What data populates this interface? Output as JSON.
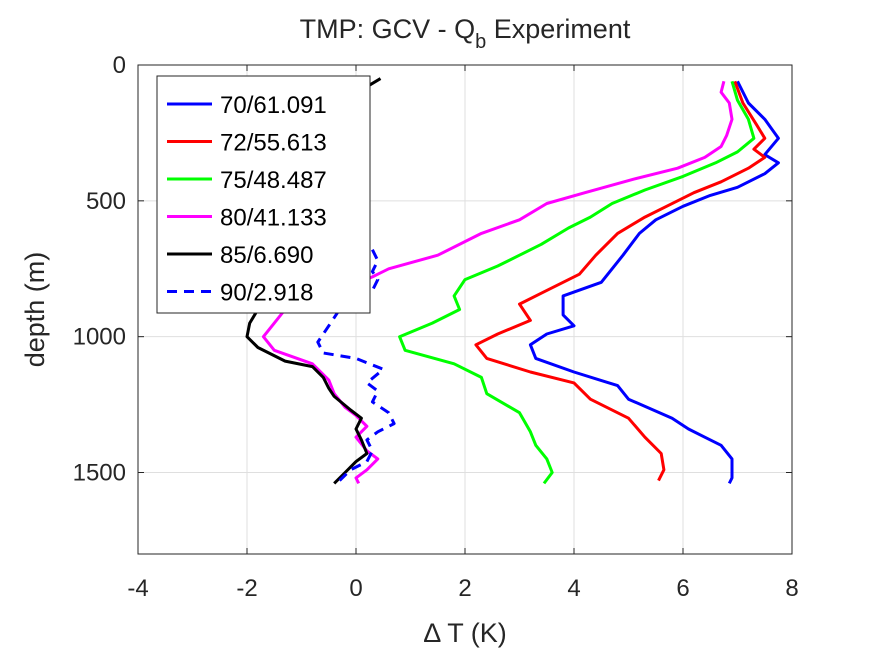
{
  "chart_data": {
    "type": "line",
    "title": "TMP: GCV - Q",
    "title_subscript": "b",
    "title_suffix": " Experiment",
    "xlabel": "Δ T (K)",
    "ylabel": "depth (m)",
    "xlim": [
      -4,
      8
    ],
    "ylim": [
      0,
      1800
    ],
    "y_reversed": true,
    "xticks": [
      -4,
      -2,
      0,
      2,
      4,
      6,
      8
    ],
    "yticks": [
      0,
      500,
      1000,
      1500
    ],
    "grid": true,
    "legend_position": "top-left",
    "series": [
      {
        "name": "70/61.091",
        "color": "#0000ff",
        "style": "solid",
        "points": [
          [
            7.0,
            60
          ],
          [
            7.2,
            140
          ],
          [
            7.5,
            200
          ],
          [
            7.75,
            270
          ],
          [
            7.5,
            330
          ],
          [
            7.75,
            360
          ],
          [
            7.5,
            400
          ],
          [
            7.0,
            450
          ],
          [
            6.5,
            480
          ],
          [
            6.0,
            520
          ],
          [
            5.5,
            570
          ],
          [
            5.2,
            620
          ],
          [
            4.9,
            700
          ],
          [
            4.5,
            800
          ],
          [
            3.8,
            850
          ],
          [
            3.8,
            920
          ],
          [
            4.0,
            960
          ],
          [
            3.5,
            990
          ],
          [
            3.2,
            1030
          ],
          [
            3.3,
            1080
          ],
          [
            4.0,
            1130
          ],
          [
            4.8,
            1180
          ],
          [
            5.0,
            1230
          ],
          [
            5.8,
            1300
          ],
          [
            6.1,
            1340
          ],
          [
            6.4,
            1370
          ],
          [
            6.7,
            1400
          ],
          [
            6.9,
            1450
          ],
          [
            6.9,
            1520
          ],
          [
            6.85,
            1540
          ]
        ]
      },
      {
        "name": "72/55.613",
        "color": "#ff0000",
        "style": "solid",
        "points": [
          [
            6.95,
            60
          ],
          [
            7.1,
            140
          ],
          [
            7.35,
            220
          ],
          [
            7.5,
            270
          ],
          [
            7.3,
            310
          ],
          [
            7.5,
            340
          ],
          [
            7.2,
            380
          ],
          [
            6.7,
            430
          ],
          [
            6.2,
            470
          ],
          [
            5.7,
            520
          ],
          [
            5.3,
            560
          ],
          [
            4.8,
            620
          ],
          [
            4.4,
            700
          ],
          [
            4.1,
            770
          ],
          [
            3.4,
            840
          ],
          [
            3.0,
            880
          ],
          [
            3.2,
            940
          ],
          [
            2.6,
            990
          ],
          [
            2.2,
            1030
          ],
          [
            2.4,
            1080
          ],
          [
            3.2,
            1130
          ],
          [
            4.0,
            1170
          ],
          [
            4.3,
            1230
          ],
          [
            5.0,
            1300
          ],
          [
            5.3,
            1370
          ],
          [
            5.6,
            1430
          ],
          [
            5.65,
            1490
          ],
          [
            5.55,
            1530
          ]
        ]
      },
      {
        "name": "75/48.487",
        "color": "#00ff00",
        "style": "solid",
        "points": [
          [
            6.9,
            60
          ],
          [
            7.0,
            130
          ],
          [
            7.2,
            200
          ],
          [
            7.3,
            270
          ],
          [
            7.0,
            320
          ],
          [
            6.6,
            360
          ],
          [
            6.0,
            410
          ],
          [
            5.3,
            460
          ],
          [
            4.7,
            510
          ],
          [
            4.3,
            560
          ],
          [
            3.9,
            600
          ],
          [
            3.4,
            660
          ],
          [
            3.0,
            700
          ],
          [
            2.6,
            740
          ],
          [
            2.0,
            790
          ],
          [
            1.8,
            850
          ],
          [
            1.9,
            900
          ],
          [
            1.4,
            950
          ],
          [
            0.8,
            1000
          ],
          [
            0.9,
            1050
          ],
          [
            1.8,
            1100
          ],
          [
            2.3,
            1150
          ],
          [
            2.4,
            1210
          ],
          [
            3.0,
            1280
          ],
          [
            3.2,
            1350
          ],
          [
            3.3,
            1400
          ],
          [
            3.5,
            1450
          ],
          [
            3.6,
            1500
          ],
          [
            3.45,
            1540
          ]
        ]
      },
      {
        "name": "80/41.133",
        "color": "#ff00ff",
        "style": "solid",
        "points": [
          [
            6.75,
            60
          ],
          [
            6.7,
            100
          ],
          [
            6.85,
            140
          ],
          [
            6.9,
            200
          ],
          [
            6.8,
            260
          ],
          [
            6.7,
            300
          ],
          [
            6.4,
            340
          ],
          [
            5.9,
            380
          ],
          [
            5.1,
            420
          ],
          [
            4.2,
            470
          ],
          [
            3.5,
            510
          ],
          [
            3.0,
            570
          ],
          [
            2.3,
            620
          ],
          [
            1.5,
            700
          ],
          [
            0.6,
            750
          ],
          [
            0.3,
            780
          ],
          [
            -0.2,
            820
          ],
          [
            -0.8,
            850
          ],
          [
            -1.3,
            900
          ],
          [
            -1.5,
            950
          ],
          [
            -1.7,
            1000
          ],
          [
            -1.5,
            1050
          ],
          [
            -0.8,
            1100
          ],
          [
            -0.5,
            1160
          ],
          [
            -0.4,
            1210
          ],
          [
            -0.2,
            1260
          ],
          [
            0.0,
            1290
          ],
          [
            0.2,
            1330
          ],
          [
            0.0,
            1370
          ],
          [
            0.2,
            1420
          ],
          [
            0.4,
            1450
          ],
          [
            0.2,
            1490
          ],
          [
            0.0,
            1520
          ],
          [
            0.05,
            1540
          ]
        ]
      },
      {
        "name": "85/6.690",
        "color": "#000000",
        "style": "solid",
        "points": [
          [
            0.45,
            50
          ],
          [
            0.2,
            80
          ],
          [
            -1.5,
            800
          ],
          [
            -1.8,
            900
          ],
          [
            -1.95,
            950
          ],
          [
            -2.0,
            1000
          ],
          [
            -1.8,
            1040
          ],
          [
            -1.3,
            1090
          ],
          [
            -0.8,
            1110
          ],
          [
            -0.6,
            1150
          ],
          [
            -0.5,
            1190
          ],
          [
            -0.4,
            1220
          ],
          [
            -0.1,
            1270
          ],
          [
            0.1,
            1300
          ],
          [
            0.0,
            1340
          ],
          [
            0.1,
            1380
          ],
          [
            0.2,
            1430
          ],
          [
            0.0,
            1460
          ],
          [
            -0.2,
            1500
          ],
          [
            -0.4,
            1540
          ]
        ]
      },
      {
        "name": "90/2.918",
        "color": "#0000ff",
        "style": "dashed",
        "points": [
          [
            0.3,
            680
          ],
          [
            0.4,
            720
          ],
          [
            0.3,
            760
          ],
          [
            0.4,
            790
          ],
          [
            0.3,
            830
          ],
          [
            -0.3,
            900
          ],
          [
            -0.5,
            960
          ],
          [
            -0.7,
            1020
          ],
          [
            -0.6,
            1060
          ],
          [
            0.0,
            1080
          ],
          [
            0.5,
            1120
          ],
          [
            0.2,
            1170
          ],
          [
            0.4,
            1200
          ],
          [
            0.3,
            1240
          ],
          [
            0.6,
            1280
          ],
          [
            0.7,
            1320
          ],
          [
            0.4,
            1350
          ],
          [
            0.2,
            1380
          ],
          [
            0.3,
            1420
          ],
          [
            0.2,
            1460
          ],
          [
            -0.1,
            1490
          ],
          [
            -0.3,
            1530
          ]
        ]
      }
    ]
  }
}
